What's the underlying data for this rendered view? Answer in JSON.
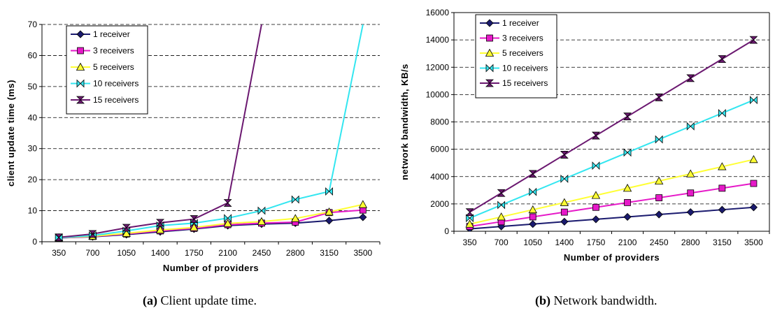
{
  "charts": [
    {
      "ylabel": "client update time (ms)",
      "xlabel": "Number of providers",
      "caption": {
        "tag": "(a)",
        "text": "Client update time."
      }
    },
    {
      "ylabel": "network bandwidth, KB/s",
      "xlabel": "Number of providers",
      "caption": {
        "tag": "(b)",
        "text": "Network bandwidth."
      }
    }
  ],
  "chart_data": [
    {
      "type": "line",
      "title": "",
      "xlabel": "Number of providers",
      "ylabel": "client update time (ms)",
      "x": [
        350,
        700,
        1050,
        1400,
        1750,
        2100,
        2450,
        2800,
        3150,
        3500
      ],
      "xticks": [
        "350",
        "700",
        "1050",
        "1400",
        "1750",
        "2100",
        "2450",
        "2800",
        "3150",
        "3500"
      ],
      "ylim": [
        0,
        70
      ],
      "yticks": [
        0,
        10,
        20,
        30,
        40,
        50,
        60,
        70
      ],
      "grid": "horizontal dashed",
      "legend": "top-left",
      "series": [
        {
          "name": "1 receiver",
          "color": "#1a1a6e",
          "marker": "diamond",
          "values": [
            1.2,
            1.6,
            2.3,
            3.2,
            4.1,
            5.2,
            5.7,
            6.0,
            6.8,
            7.9
          ]
        },
        {
          "name": "3 receivers",
          "color": "#e619c8",
          "marker": "square",
          "values": [
            1.2,
            1.7,
            2.5,
            3.5,
            4.3,
            5.5,
            6.0,
            6.3,
            9.4,
            10.2
          ]
        },
        {
          "name": "5 receivers",
          "color": "#ffff33",
          "marker": "triangle",
          "values": [
            1.3,
            1.8,
            2.7,
            3.8,
            4.6,
            5.9,
            6.5,
            7.5,
            9.6,
            12.0
          ]
        },
        {
          "name": "10 receivers",
          "color": "#33e6f0",
          "marker": "bowtie",
          "values": [
            1.3,
            2.0,
            3.5,
            5.2,
            6.0,
            7.6,
            10.0,
            13.6,
            16.2,
            70
          ]
        },
        {
          "name": "15 receivers",
          "color": "#6b1870",
          "marker": "hourglass",
          "values": [
            1.4,
            2.5,
            4.5,
            6.1,
            7.3,
            12.5,
            70,
            null,
            null,
            null
          ]
        }
      ]
    },
    {
      "type": "line",
      "title": "",
      "xlabel": "Number of providers",
      "ylabel": "network bandwidth, KB/s",
      "x": [
        350,
        700,
        1050,
        1400,
        1750,
        2100,
        2450,
        2800,
        3150,
        3500
      ],
      "xticks": [
        "350",
        "700",
        "1050",
        "1400",
        "1750",
        "2100",
        "2450",
        "2800",
        "3150",
        "3500"
      ],
      "ylim": [
        0,
        16000
      ],
      "yticks": [
        0,
        2000,
        4000,
        6000,
        8000,
        10000,
        12000,
        14000,
        16000
      ],
      "grid": "horizontal dashed",
      "legend": "top-left",
      "series": [
        {
          "name": "1 receiver",
          "color": "#1a1a6e",
          "marker": "diamond",
          "values": [
            175,
            350,
            525,
            700,
            875,
            1050,
            1225,
            1400,
            1575,
            1750
          ]
        },
        {
          "name": "3 receivers",
          "color": "#e619c8",
          "marker": "square",
          "values": [
            350,
            700,
            1050,
            1400,
            1750,
            2100,
            2450,
            2800,
            3150,
            3500
          ]
        },
        {
          "name": "5 receivers",
          "color": "#ffff33",
          "marker": "triangle",
          "values": [
            525,
            1050,
            1575,
            2100,
            2625,
            3150,
            3675,
            4200,
            4725,
            5250
          ]
        },
        {
          "name": "10 receivers",
          "color": "#33e6f0",
          "marker": "bowtie",
          "values": [
            960,
            1920,
            2880,
            3840,
            4800,
            5760,
            6720,
            7680,
            8640,
            9600
          ]
        },
        {
          "name": "15 receivers",
          "color": "#6b1870",
          "marker": "hourglass",
          "values": [
            1400,
            2800,
            4200,
            5600,
            7000,
            8400,
            9800,
            11200,
            12600,
            14000
          ]
        }
      ]
    }
  ]
}
